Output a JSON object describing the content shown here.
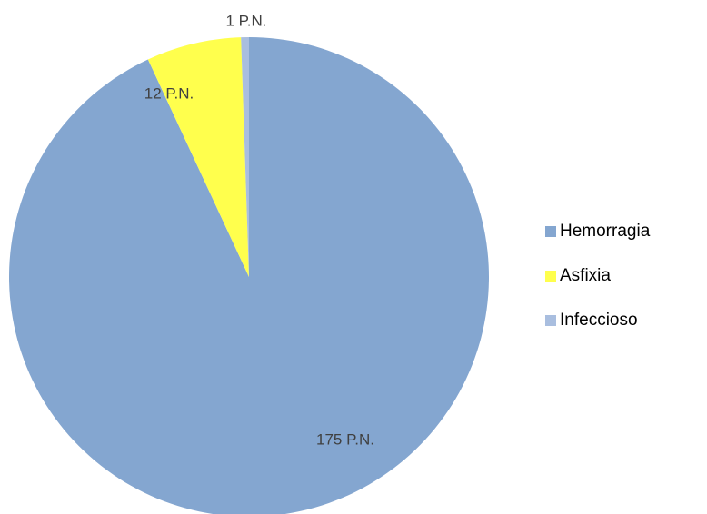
{
  "chart_data": {
    "type": "pie",
    "slices": [
      {
        "name": "Hemorragia",
        "value": 175,
        "label": "175 P.N.",
        "color": "#84a6d0"
      },
      {
        "name": "Asfixia",
        "value": 12,
        "label": "12 P.N.",
        "color": "#ffff4d"
      },
      {
        "name": "Infeccioso",
        "value": 1,
        "label": "1 P.N.",
        "color": "#a9bedf"
      }
    ],
    "legend": {
      "position": "right",
      "entries": [
        "Hemorragia",
        "Asfixia",
        "Infeccioso"
      ]
    }
  }
}
